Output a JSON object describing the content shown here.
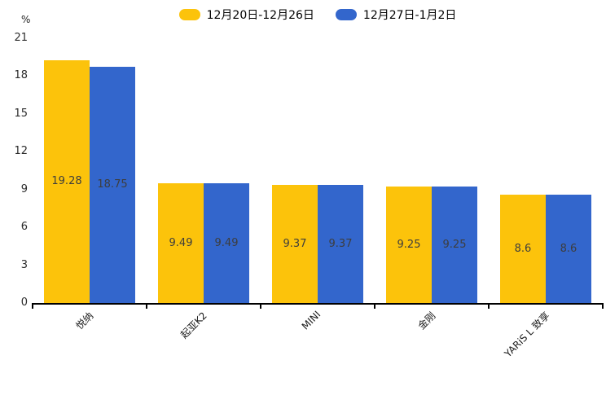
{
  "chart_data": {
    "type": "bar",
    "title": "",
    "xlabel": "",
    "ylabel": "%",
    "categories": [
      "悦纳",
      "起亚K2",
      "MINI",
      "金刚",
      "YARiS L 致享"
    ],
    "series": [
      {
        "name": "12月20日-12月26日",
        "color": "#fcc30b",
        "values": [
          19.28,
          9.49,
          9.37,
          9.25,
          8.6
        ]
      },
      {
        "name": "12月27日-1月2日",
        "color": "#3366cc",
        "values": [
          18.75,
          9.49,
          9.37,
          9.25,
          8.6
        ]
      }
    ],
    "ylim": [
      0,
      21
    ],
    "yticks": [
      0,
      3,
      6,
      9,
      12,
      15,
      18,
      21
    ],
    "grid": false,
    "legend_position": "top",
    "value_labels_shown": true
  }
}
